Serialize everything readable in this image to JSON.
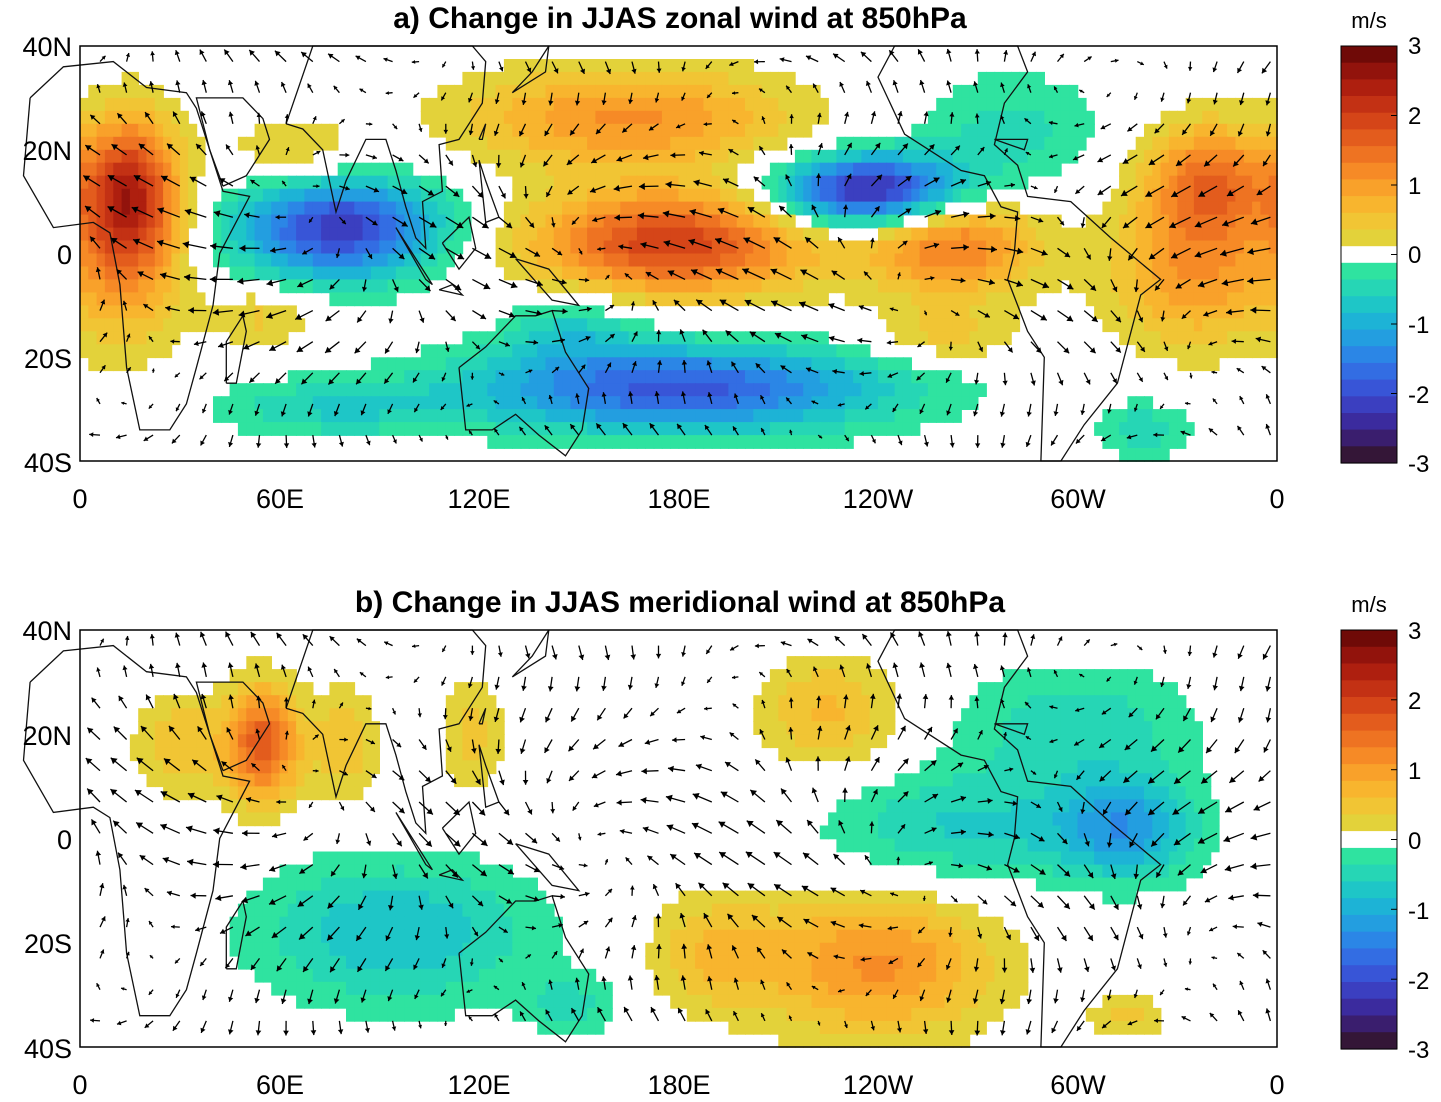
{
  "panels": [
    {
      "id": "a",
      "title": "a) Change in JJAS zonal wind at 850hPa",
      "field": "zonal",
      "features": [
        {
          "lon": 15,
          "lat": 12,
          "sx": 10,
          "sy": 10,
          "v": 1.8
        },
        {
          "lon": 15,
          "lat": 2,
          "sx": 12,
          "sy": 14,
          "v": 1.1
        },
        {
          "lon": 78,
          "lat": 5,
          "sx": 22,
          "sy": 7,
          "v": -2.4
        },
        {
          "lon": 65,
          "lat": 19,
          "sx": 15,
          "sy": 5,
          "v": 0.6
        },
        {
          "lon": 165,
          "lat": 26,
          "sx": 35,
          "sy": 7,
          "v": 1.3
        },
        {
          "lon": 178,
          "lat": 2,
          "sx": 30,
          "sy": 7,
          "v": 2.2
        },
        {
          "lon": 262,
          "lat": 2,
          "sx": 18,
          "sy": 7,
          "v": 1.6
        },
        {
          "lon": 238,
          "lat": 12,
          "sx": 20,
          "sy": 5,
          "v": -2.8
        },
        {
          "lon": 280,
          "lat": 24,
          "sx": 20,
          "sy": 8,
          "v": -0.6
        },
        {
          "lon": 340,
          "lat": 14,
          "sx": 14,
          "sy": 8,
          "v": 1.6
        },
        {
          "lon": 335,
          "lat": -4,
          "sx": 18,
          "sy": 10,
          "v": 1.2
        },
        {
          "lon": 55,
          "lat": -12,
          "sx": 12,
          "sy": 4,
          "v": 0.6
        },
        {
          "lon": 75,
          "lat": -30,
          "sx": 25,
          "sy": 4,
          "v": -0.7
        },
        {
          "lon": 180,
          "lat": -26,
          "sx": 45,
          "sy": 6,
          "v": -2.1
        },
        {
          "lon": 148,
          "lat": -14,
          "sx": 14,
          "sy": 5,
          "v": -0.7
        },
        {
          "lon": 260,
          "lat": -16,
          "sx": 16,
          "sy": 4,
          "v": 0.6
        },
        {
          "lon": 320,
          "lat": -34,
          "sx": 10,
          "sy": 4,
          "v": -0.7
        }
      ],
      "wind": {
        "u0": 0.2,
        "u_amp": 1.6,
        "v_amp": 1.0
      }
    },
    {
      "id": "b",
      "title": "b) Change in JJAS meridional wind at 850hPa",
      "field": "meridional",
      "features": [
        {
          "lon": 55,
          "lat": 18,
          "sx": 8,
          "sy": 8,
          "v": 1.9
        },
        {
          "lon": 30,
          "lat": 18,
          "sx": 10,
          "sy": 7,
          "v": 0.7
        },
        {
          "lon": 80,
          "lat": 18,
          "sx": 7,
          "sy": 8,
          "v": 0.7
        },
        {
          "lon": 118,
          "lat": 20,
          "sx": 7,
          "sy": 8,
          "v": 0.6
        },
        {
          "lon": 225,
          "lat": 24,
          "sx": 15,
          "sy": 8,
          "v": 0.8
        },
        {
          "lon": 300,
          "lat": 22,
          "sx": 25,
          "sy": 8,
          "v": -0.7
        },
        {
          "lon": 265,
          "lat": 2,
          "sx": 30,
          "sy": 8,
          "v": -0.8
        },
        {
          "lon": 315,
          "lat": 2,
          "sx": 15,
          "sy": 7,
          "v": -1.3
        },
        {
          "lon": 95,
          "lat": -18,
          "sx": 30,
          "sy": 10,
          "v": -1.0
        },
        {
          "lon": 148,
          "lat": -32,
          "sx": 10,
          "sy": 4,
          "v": -0.6
        },
        {
          "lon": 190,
          "lat": -22,
          "sx": 14,
          "sy": 8,
          "v": 0.7
        },
        {
          "lon": 240,
          "lat": -24,
          "sx": 25,
          "sy": 10,
          "v": 1.3
        },
        {
          "lon": 315,
          "lat": -34,
          "sx": 8,
          "sy": 3,
          "v": 0.6
        }
      ],
      "wind": {
        "u0": 0.2,
        "u_amp": 1.3,
        "v_amp": 1.2
      }
    }
  ],
  "y_ticks": [
    "40N",
    "20N",
    "0",
    "20S",
    "40S"
  ],
  "x_ticks": [
    "0",
    "60E",
    "120E",
    "180E",
    "120W",
    "60W",
    "0"
  ],
  "colorbar": {
    "unit": "m/s",
    "tick_labels": [
      "3",
      "2",
      "1",
      "0",
      "-1",
      "-2",
      "-3"
    ],
    "levels": [
      -3,
      -2.75,
      -2.5,
      -2.25,
      -2,
      -1.75,
      -1.5,
      -1.25,
      -1,
      -0.75,
      -0.5,
      -0.25,
      0.25,
      0.5,
      0.75,
      1,
      1.25,
      1.5,
      1.75,
      2,
      2.25,
      2.5,
      2.75,
      3
    ],
    "colors": [
      "#341637",
      "#3a1e6e",
      "#3b2b9e",
      "#3b3fc0",
      "#3855d7",
      "#336de3",
      "#2b86e6",
      "#239ee0",
      "#1db3d6",
      "#1ec6c7",
      "#26d6b5",
      "#2fe3a0",
      "#ffffff",
      "#e3d23a",
      "#f1c534",
      "#f8b52e",
      "#f9a12a",
      "#f68a26",
      "#ee7322",
      "#e35c1d",
      "#d54518",
      "#c33114",
      "#ae1f0f",
      "#92130c",
      "#6f0a07"
    ]
  }
}
